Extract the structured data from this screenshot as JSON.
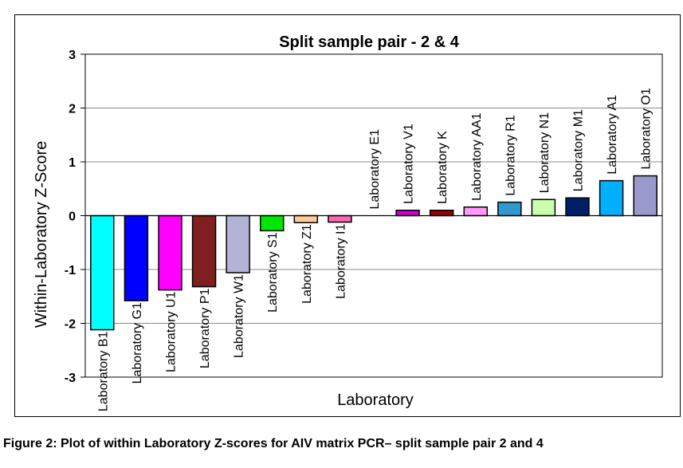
{
  "chart_data": {
    "type": "bar",
    "title": "Split sample pair - 2 & 4",
    "xlabel": "Laboratory",
    "ylabel": "Within-Laboratory Z-Score",
    "ylim": [
      -3,
      3
    ],
    "yticks": [
      -3,
      -2,
      -1,
      0,
      1,
      2,
      3
    ],
    "grid": true,
    "legend": "none",
    "categories": [
      "Laboratory B1",
      "Laboratory G1",
      "Laboratory U1",
      "Laboratory P1",
      "Laboratory W1",
      "Laboratory S1",
      "Laboratory Z1",
      "Laboratory I1",
      "Laboratory E1",
      "Laboratory V1",
      "Laboratory K",
      "Laboratory AA1",
      "Laboratory R1",
      "Laboratory N1",
      "Laboratory M1",
      "Laboratory A1",
      "Laboratory O1"
    ],
    "values": [
      -2.12,
      -1.58,
      -1.38,
      -1.32,
      -1.06,
      -0.28,
      -0.13,
      -0.12,
      0.0,
      0.1,
      0.1,
      0.16,
      0.25,
      0.3,
      0.33,
      0.65,
      0.74
    ],
    "colors": [
      "#00ffff",
      "#0000ff",
      "#ff00ff",
      "#7f1f1f",
      "#b3b3d6",
      "#00e600",
      "#ffcc99",
      "#ff66b3",
      "#ffffff",
      "#cc00cc",
      "#990000",
      "#ff99ff",
      "#3399cc",
      "#ccffaa",
      "#001f66",
      "#00b0ff",
      "#9999cc"
    ]
  },
  "caption": "Figure 2: Plot of within Laboratory Z-scores for AIV matrix PCR– split sample pair 2 and 4"
}
